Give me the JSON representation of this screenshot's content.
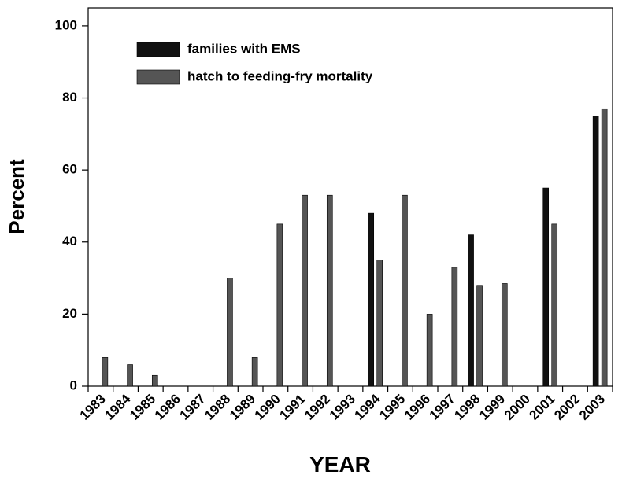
{
  "chart_data": {
    "type": "bar",
    "x_label": "YEAR",
    "y_label": "Percent",
    "categories": [
      "1983",
      "1984",
      "1985",
      "1986",
      "1987",
      "1988",
      "1989",
      "1990",
      "1991",
      "1992",
      "1993",
      "1994",
      "1995",
      "1996",
      "1997",
      "1998",
      "1999",
      "2000",
      "2001",
      "2002",
      "2003"
    ],
    "series": [
      {
        "name": "families with EMS",
        "color": "#111111",
        "values": [
          null,
          null,
          null,
          null,
          null,
          null,
          null,
          null,
          null,
          null,
          null,
          48,
          null,
          null,
          null,
          42,
          null,
          null,
          55,
          null,
          75
        ]
      },
      {
        "name": "hatch to feeding-fry mortality",
        "color": "#555555",
        "values": [
          8,
          6,
          3,
          null,
          null,
          30,
          8,
          45,
          53,
          53,
          null,
          35,
          53,
          20,
          33,
          28,
          28.5,
          null,
          45,
          null,
          77
        ]
      }
    ],
    "ylim": [
      0,
      105
    ],
    "yticks": [
      0,
      20,
      40,
      60,
      80,
      100
    ],
    "legend": "upper left"
  }
}
